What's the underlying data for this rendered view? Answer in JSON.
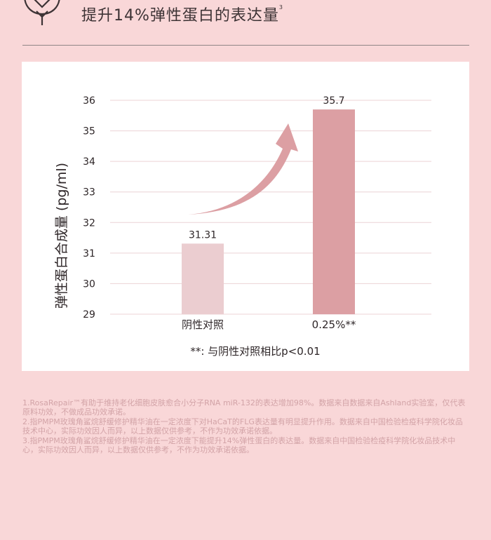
{
  "header": {
    "title": "提升14%弹性蛋白的表达量",
    "title_sup": "3"
  },
  "chart_data": {
    "type": "bar",
    "categories": [
      "阴性对照",
      "0.25%**"
    ],
    "values": [
      31.31,
      35.7
    ],
    "value_labels": [
      "31.31",
      "35.7"
    ],
    "bar_colors": [
      "#ebcdd0",
      "#dc9fa3"
    ],
    "ylabel": "弹性蛋白合成量 (pg/ml)",
    "ylim": [
      29,
      36
    ],
    "yticks": [
      29,
      30,
      31,
      32,
      33,
      34,
      35,
      36
    ],
    "grid": true,
    "annotation": "**: 与阴性对照相比p<0.01",
    "arrow_color": "#dc9fa3"
  },
  "footnotes": [
    "1.RosaRepair™有助于维持老化细胞皮肤愈合小分子RNA miR-132的表达增加98%。数据来自数据来自Ashland实验室，仅代表原料功效，不做成品功效承诺。",
    "2.指PMPM玫瑰角鲨烷舒缓修护精华油在一定浓度下对HaCaT的FLG表达量有明显提升作用。数据来自中国检验检疫科学院化妆品技术中心，实际功效因人而异，以上数据仅供参考，不作为功效承诺依据。",
    "3.指PMPM玫瑰角鲨烷舒缓修护精华油在一定浓度下能提升14%弹性蛋白的表达量。数据来自中国检验检疫科学院化妆品技术中心，实际功效因人而异，以上数据仅供参考，不作为功效承诺依据。"
  ]
}
